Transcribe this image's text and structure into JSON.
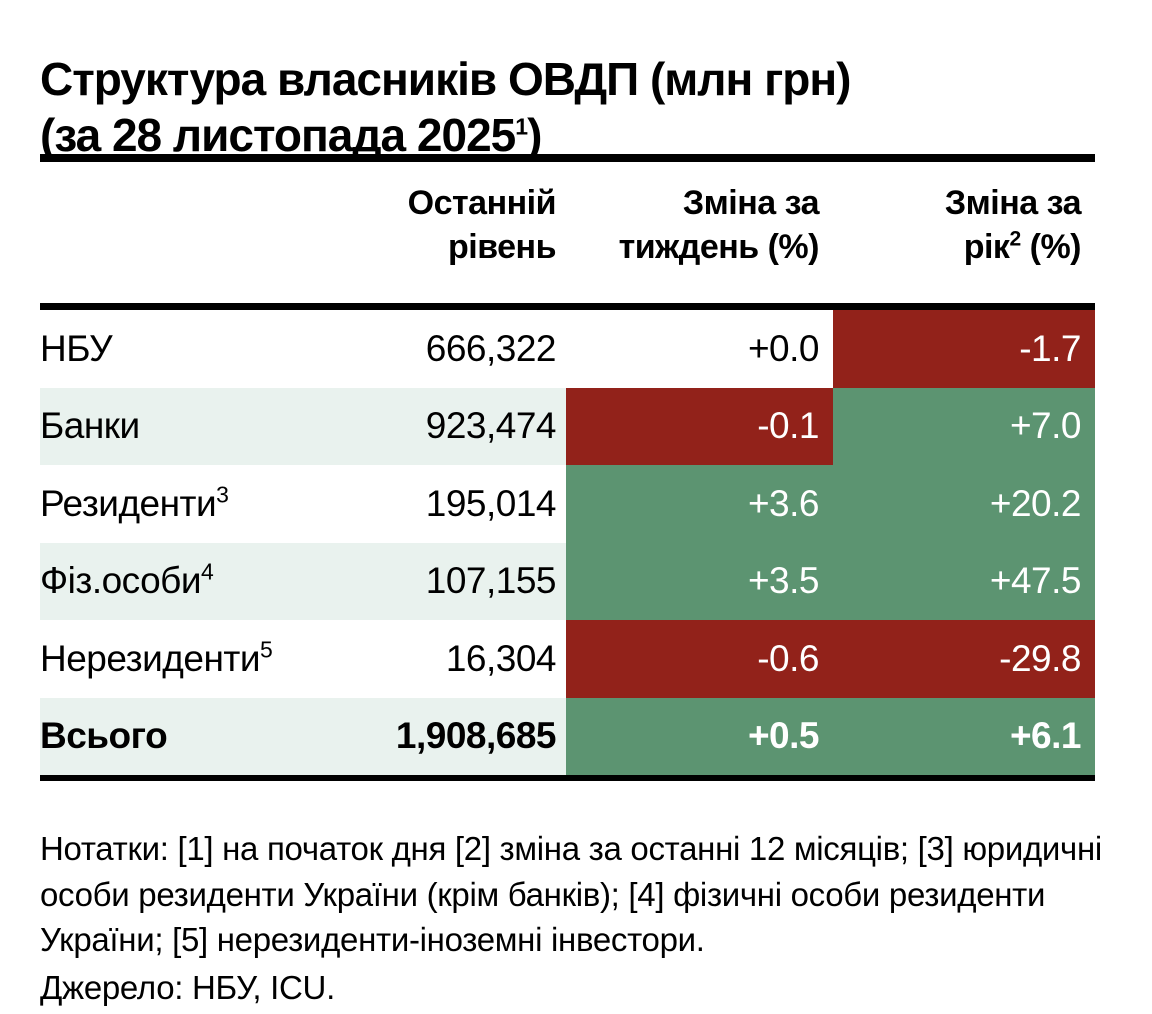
{
  "title": {
    "line1": "Структура власників ОВДП (млн грн)",
    "line2_pre": "(за 28 листопада 2025",
    "line2_sup": "1",
    "line2_close": ")"
  },
  "header": {
    "col_level": {
      "line1": "Останній",
      "line2": "рівень"
    },
    "col_week": {
      "line1": "Зміна за",
      "line2": "тиждень (%)"
    },
    "col_year": {
      "line1": "Зміна за",
      "line2_pre": "рік",
      "line2_sup": "2",
      "line2_post": " (%)"
    }
  },
  "colors": {
    "negative_bg": "#92221a",
    "positive_bg": "#5c9471",
    "stripe_bg": "#e9f2ee",
    "plain_bg": "#ffffff",
    "cell_text": "#ffffff",
    "text": "#000000"
  },
  "table": {
    "rows": [
      {
        "label": "НБУ",
        "sup": "",
        "level": "666,322",
        "stripe": "#ffffff",
        "week": {
          "text": "+0.0",
          "bg": "#ffffff",
          "fg": "#000000"
        },
        "year": {
          "text": "-1.7",
          "bg": "#92221a",
          "fg": "#ffffff"
        }
      },
      {
        "label": "Банки",
        "sup": "",
        "level": "923,474",
        "stripe": "#e9f2ee",
        "week": {
          "text": "-0.1",
          "bg": "#92221a",
          "fg": "#ffffff"
        },
        "year": {
          "text": "+7.0",
          "bg": "#5c9471",
          "fg": "#ffffff"
        }
      },
      {
        "label": "Резиденти",
        "sup": "3",
        "level": "195,014",
        "stripe": "#ffffff",
        "week": {
          "text": "+3.6",
          "bg": "#5c9471",
          "fg": "#ffffff"
        },
        "year": {
          "text": "+20.2",
          "bg": "#5c9471",
          "fg": "#ffffff"
        }
      },
      {
        "label": "Фіз.особи",
        "sup": "4",
        "level": "107,155",
        "stripe": "#e9f2ee",
        "week": {
          "text": "+3.5",
          "bg": "#5c9471",
          "fg": "#ffffff"
        },
        "year": {
          "text": "+47.5",
          "bg": "#5c9471",
          "fg": "#ffffff"
        }
      },
      {
        "label": "Нерезиденти",
        "sup": "5",
        "level": "16,304",
        "stripe": "#ffffff",
        "week": {
          "text": "-0.6",
          "bg": "#92221a",
          "fg": "#ffffff"
        },
        "year": {
          "text": "-29.8",
          "bg": "#92221a",
          "fg": "#ffffff"
        }
      },
      {
        "label": "Всього",
        "sup": "",
        "level": "1,908,685",
        "stripe": "#e9f2ee",
        "week": {
          "text": "+0.5",
          "bg": "#5c9471",
          "fg": "#ffffff"
        },
        "year": {
          "text": "+6.1",
          "bg": "#5c9471",
          "fg": "#ffffff"
        }
      }
    ]
  },
  "notes": "Нотатки: [1] на початок дня [2] зміна за останні 12 місяців; [3] юридичні особи  резиденти України (крім банків); [4] фізичні особи резиденти України; [5] нерезиденти-іноземні інвестори.",
  "source": "Джерело: НБУ, ICU.",
  "chart_data": {
    "type": "table",
    "title": "Структура власників ОВДП (млн грн) (за 28 листопада 2025¹)",
    "columns": [
      "",
      "Останній рівень",
      "Зміна за тиждень (%)",
      "Зміна за рік² (%)"
    ],
    "rows": [
      [
        "НБУ",
        666322,
        0.0,
        -1.7
      ],
      [
        "Банки",
        923474,
        -0.1,
        7.0
      ],
      [
        "Резиденти³",
        195014,
        3.6,
        20.2
      ],
      [
        "Фіз.особи⁴",
        107155,
        3.5,
        47.5
      ],
      [
        "Нерезиденти⁵",
        16304,
        -0.6,
        -29.8
      ],
      [
        "Всього",
        1908685,
        0.5,
        6.1
      ]
    ],
    "notes": "Нотатки: [1] на початок дня [2] зміна за останні 12 місяців; [3] юридичні особи  резиденти України (крім банків); [4] фізичні особи резиденти України; [5] нерезиденти-іноземні інвестори.",
    "source": "НБУ, ICU",
    "color_coding": "dark red background = negative change, green background = positive change"
  }
}
